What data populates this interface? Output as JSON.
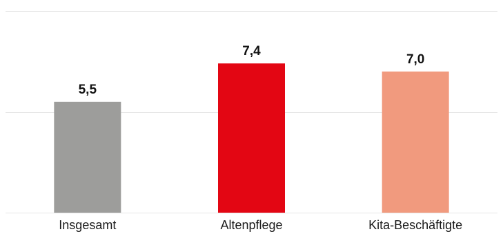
{
  "chart_data": {
    "type": "bar",
    "categories": [
      "Insgesamt",
      "Altenpflege",
      "Kita-Beschäftigte"
    ],
    "values": [
      5.5,
      7.4,
      7.0
    ],
    "value_labels": [
      "5,5",
      "7,4",
      "7,0"
    ],
    "colors": [
      "#9d9d9b",
      "#e30613",
      "#f19a7e"
    ],
    "ylim": [
      0,
      10
    ],
    "gridlines": [
      0,
      5,
      10
    ],
    "grid": true,
    "legend": "none"
  }
}
